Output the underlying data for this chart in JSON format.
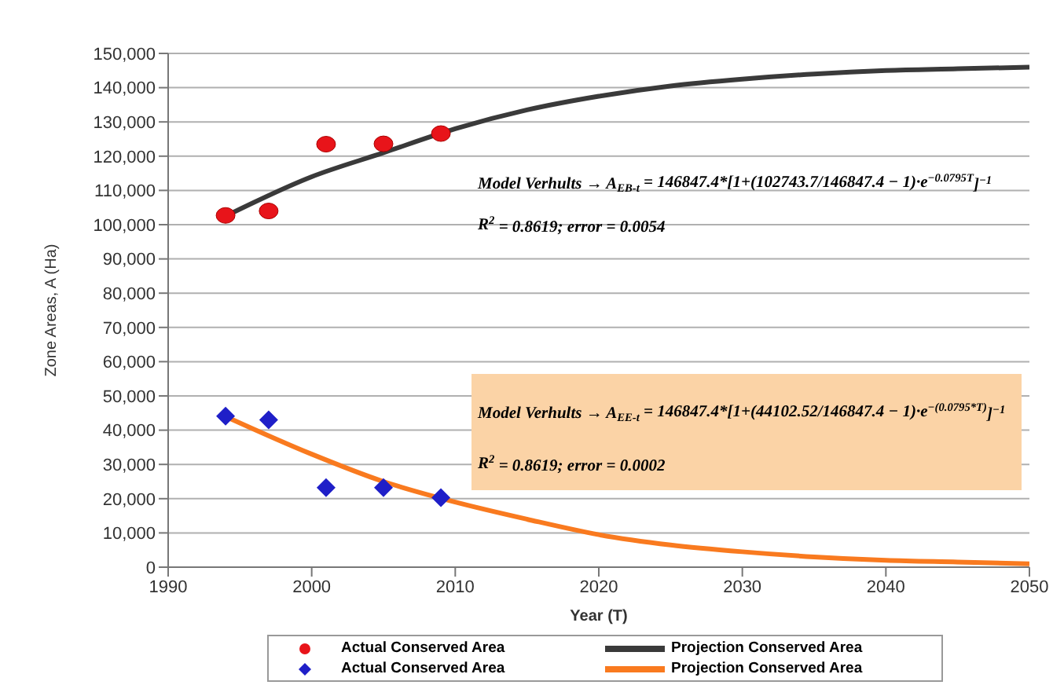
{
  "chart_data": {
    "type": "scatter",
    "xlabel": "Year (T)",
    "ylabel": "Zone Areas, A (Ha)",
    "xlim": [
      1990,
      2050
    ],
    "xticks": [
      1990,
      2000,
      2010,
      2020,
      2030,
      2040,
      2050
    ],
    "ylim": [
      0,
      150000
    ],
    "yticks": [
      0,
      {
        "value": 10000,
        "label": "10,000"
      },
      {
        "value": 20000,
        "label": "20,000"
      },
      {
        "value": 30000,
        "label": "30,000"
      },
      {
        "value": 40000,
        "label": "40,000"
      },
      {
        "value": 50000,
        "label": "50,000"
      },
      {
        "value": 60000,
        "label": "60,000"
      },
      {
        "value": 70000,
        "label": "70,000"
      },
      {
        "value": 80000,
        "label": "80,000"
      },
      {
        "value": 90000,
        "label": "90,000"
      },
      {
        "value": 100000,
        "label": "100,000"
      },
      {
        "value": 110000,
        "label": "110,000"
      },
      {
        "value": 120000,
        "label": "120,000"
      },
      {
        "value": 130000,
        "label": "130,000"
      },
      {
        "value": 140000,
        "label": "140,000"
      },
      {
        "value": 150000,
        "label": "150,000"
      }
    ],
    "grid": "y",
    "legend": "bottom",
    "series": [
      {
        "name": "Actual Conserved Area",
        "marker": "circle",
        "color": "#e8141a",
        "x": [
          1994,
          1997,
          2001,
          2005,
          2009
        ],
        "values": [
          102700,
          104000,
          123500,
          123600,
          126600
        ]
      },
      {
        "name": "Projection Conserved Area",
        "type": "line",
        "marker": "none",
        "color": "#3a3a3a",
        "x": [
          1994,
          2000,
          2005,
          2010,
          2015,
          2020,
          2025,
          2030,
          2035,
          2040,
          2045,
          2050
        ],
        "values": [
          102500,
          114000,
          121000,
          128000,
          133500,
          137500,
          140500,
          142500,
          144000,
          145000,
          145500,
          146000
        ]
      },
      {
        "name": "Actual Conserved Area",
        "marker": "diamond",
        "color": "#1f1fc8",
        "x": [
          1994,
          1997,
          2001,
          2005,
          2009
        ],
        "values": [
          44100,
          43000,
          23200,
          23200,
          20300
        ]
      },
      {
        "name": "Projection Conserved Area",
        "type": "line",
        "marker": "none",
        "color": "#f97a1f",
        "x": [
          1994,
          2000,
          2005,
          2010,
          2015,
          2020,
          2025,
          2030,
          2035,
          2040,
          2045,
          2050
        ],
        "values": [
          44000,
          33000,
          25000,
          19000,
          14000,
          9500,
          6500,
          4500,
          3000,
          2000,
          1500,
          1000
        ]
      }
    ],
    "annotations": [
      "Model Verhults → A$_{EB-t}$ = 146847.4*[1+(102743.7/146847.4 − 1)·e$^{−0.0795T}$]$^{−1}$",
      "R$^{2}$ = 0.8619;     error = 0.0054",
      "Model Verhults → A$_{EE-t}$ = 146847.4*[1+(44102.52/146847.4 − 1)·e$^{−(0.0795*T)}$]$^{−1}$",
      "R$^{2}$ = 0.8619;     error = 0.0002"
    ]
  }
}
